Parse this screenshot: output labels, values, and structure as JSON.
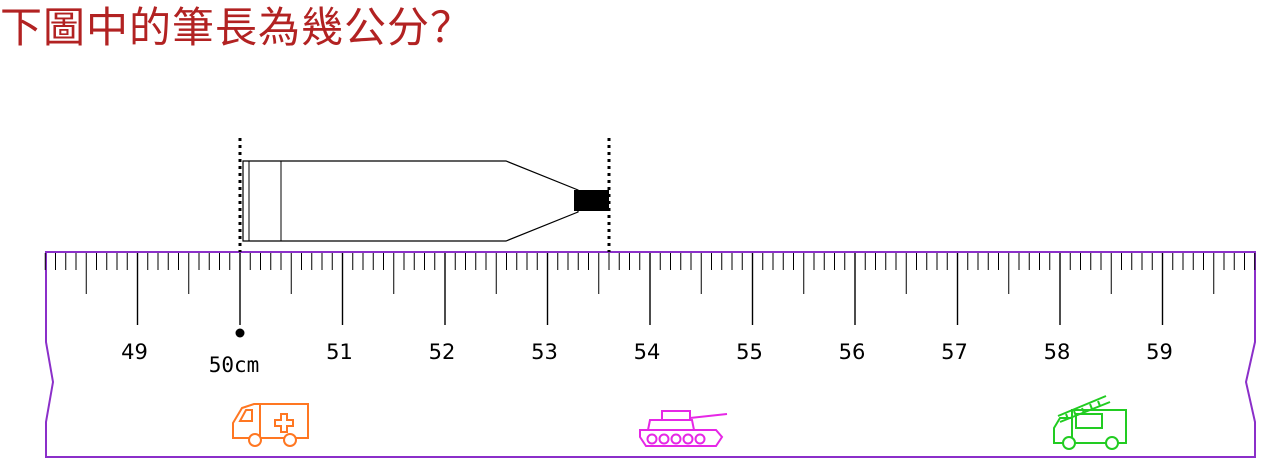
{
  "question": "下圖中的筆長為幾公分？",
  "ruler": {
    "labels": [
      "49",
      "50cm",
      "51",
      "52",
      "53",
      "54",
      "55",
      "56",
      "57",
      "58",
      "59"
    ],
    "start_value": 48.06,
    "end_value": 59.94,
    "outline_color": "#8b2fc9"
  },
  "pen": {
    "start_cm": 50,
    "end_cm": 53.6
  },
  "icons": [
    {
      "name": "ambulance-icon",
      "color": "#ff7722"
    },
    {
      "name": "tank-icon",
      "color": "#e627e6"
    },
    {
      "name": "fire-truck-icon",
      "color": "#22cc22"
    }
  ]
}
